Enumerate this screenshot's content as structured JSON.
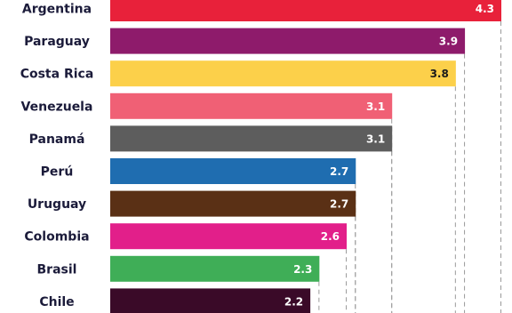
{
  "chart_data": {
    "type": "bar",
    "orientation": "horizontal",
    "categories": [
      "Argentina",
      "Paraguay",
      "Costa Rica",
      "Venezuela",
      "Panamá",
      "Perú",
      "Uruguay",
      "Colombia",
      "Brasil",
      "Chile"
    ],
    "values": [
      4.3,
      3.9,
      3.8,
      3.1,
      3.1,
      2.7,
      2.7,
      2.6,
      2.3,
      2.2
    ],
    "value_labels": [
      "4.3",
      "3.9",
      "3.8",
      "3.1",
      "3.1",
      "2.7",
      "2.7",
      "2.6",
      "2.3",
      "2.2"
    ],
    "colors": [
      "#e8213a",
      "#8e1b6b",
      "#fcd04a",
      "#f06075",
      "#5d5d5d",
      "#1f6db0",
      "#5a3015",
      "#e21f8a",
      "#3fae57",
      "#3a0a28"
    ],
    "value_label_colors": [
      "#ffffff",
      "#ffffff",
      "#1a1a1a",
      "#ffffff",
      "#ffffff",
      "#ffffff",
      "#ffffff",
      "#ffffff",
      "#ffffff",
      "#ffffff"
    ],
    "label_color": "#1b1b3a",
    "guide_color": "#9a9a9a",
    "xlim": [
      0,
      4.3
    ],
    "grid": false,
    "legend": "none"
  }
}
